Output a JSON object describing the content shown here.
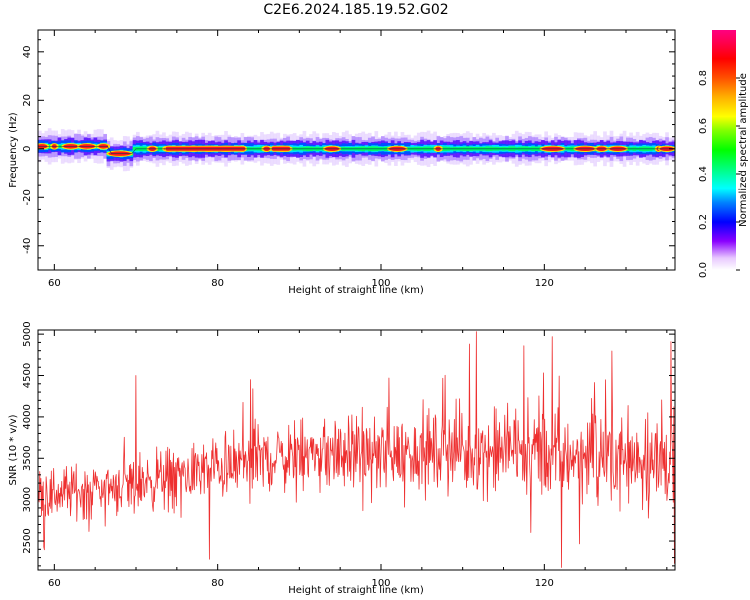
{
  "figure_title": "C2E6.2024.185.19.52.G02",
  "chart_data": [
    {
      "type": "heatmap",
      "xlabel": "Height of straight line (km)",
      "ylabel": "Frequency (Hz)",
      "xlim": [
        58,
        136
      ],
      "ylim": [
        -50,
        49
      ],
      "xticks": [
        60,
        80,
        100,
        120
      ],
      "yticks": [
        -40,
        -20,
        0,
        20,
        40
      ],
      "colorbar": {
        "label": "Normalized spectral amplitude",
        "range": [
          0,
          1
        ],
        "ticks": [
          0.0,
          0.2,
          0.4,
          0.6,
          0.8
        ],
        "tick_labels": [
          "0.0",
          "0.2",
          "0.4",
          "0.6",
          "0.8"
        ],
        "colormap": "gist_ncar"
      },
      "ridge": {
        "description_free": true,
        "segments": [
          {
            "x_start": 58,
            "x_end": 66.5,
            "center_hz": 1
          },
          {
            "x_start": 66.5,
            "x_end": 69.5,
            "center_hz": -2
          },
          {
            "x_start": 69.5,
            "x_end": 136,
            "center_hz": 0
          }
        ],
        "peak_amplitude_x": [
          58.5,
          60,
          62,
          64,
          66,
          68,
          72,
          74,
          77,
          79,
          81,
          83,
          86,
          88,
          94,
          102,
          107,
          121,
          125,
          127,
          129,
          134,
          135
        ]
      }
    },
    {
      "type": "line",
      "xlabel": "Height of straight line (km)",
      "ylabel": "SNR (10 * v/v)",
      "xlim": [
        58,
        136
      ],
      "ylim": [
        2150,
        5050
      ],
      "xticks": [
        60,
        80,
        100,
        120
      ],
      "yticks": [
        2500,
        3000,
        3500,
        4000,
        4500,
        5000
      ],
      "color": "#ee3030",
      "series": [
        {
          "x_start": 58,
          "x_end": 136,
          "trend_x": [
            58,
            70,
            80,
            90,
            100,
            110,
            120,
            130,
            136
          ],
          "trend_y": [
            3050,
            3200,
            3400,
            3550,
            3550,
            3600,
            3550,
            3550,
            3450
          ],
          "spikes": [
            {
              "x": 70,
              "y": 4500
            },
            {
              "x": 79,
              "y": 2280
            },
            {
              "x": 84,
              "y": 4450
            },
            {
              "x": 101,
              "y": 4470
            },
            {
              "x": 110.8,
              "y": 4880
            },
            {
              "x": 111.7,
              "y": 5030
            },
            {
              "x": 117.5,
              "y": 4860
            },
            {
              "x": 121,
              "y": 4970
            },
            {
              "x": 122.1,
              "y": 2180
            },
            {
              "x": 135.5,
              "y": 4910
            },
            {
              "x": 135.9,
              "y": 2230
            }
          ]
        }
      ]
    }
  ]
}
